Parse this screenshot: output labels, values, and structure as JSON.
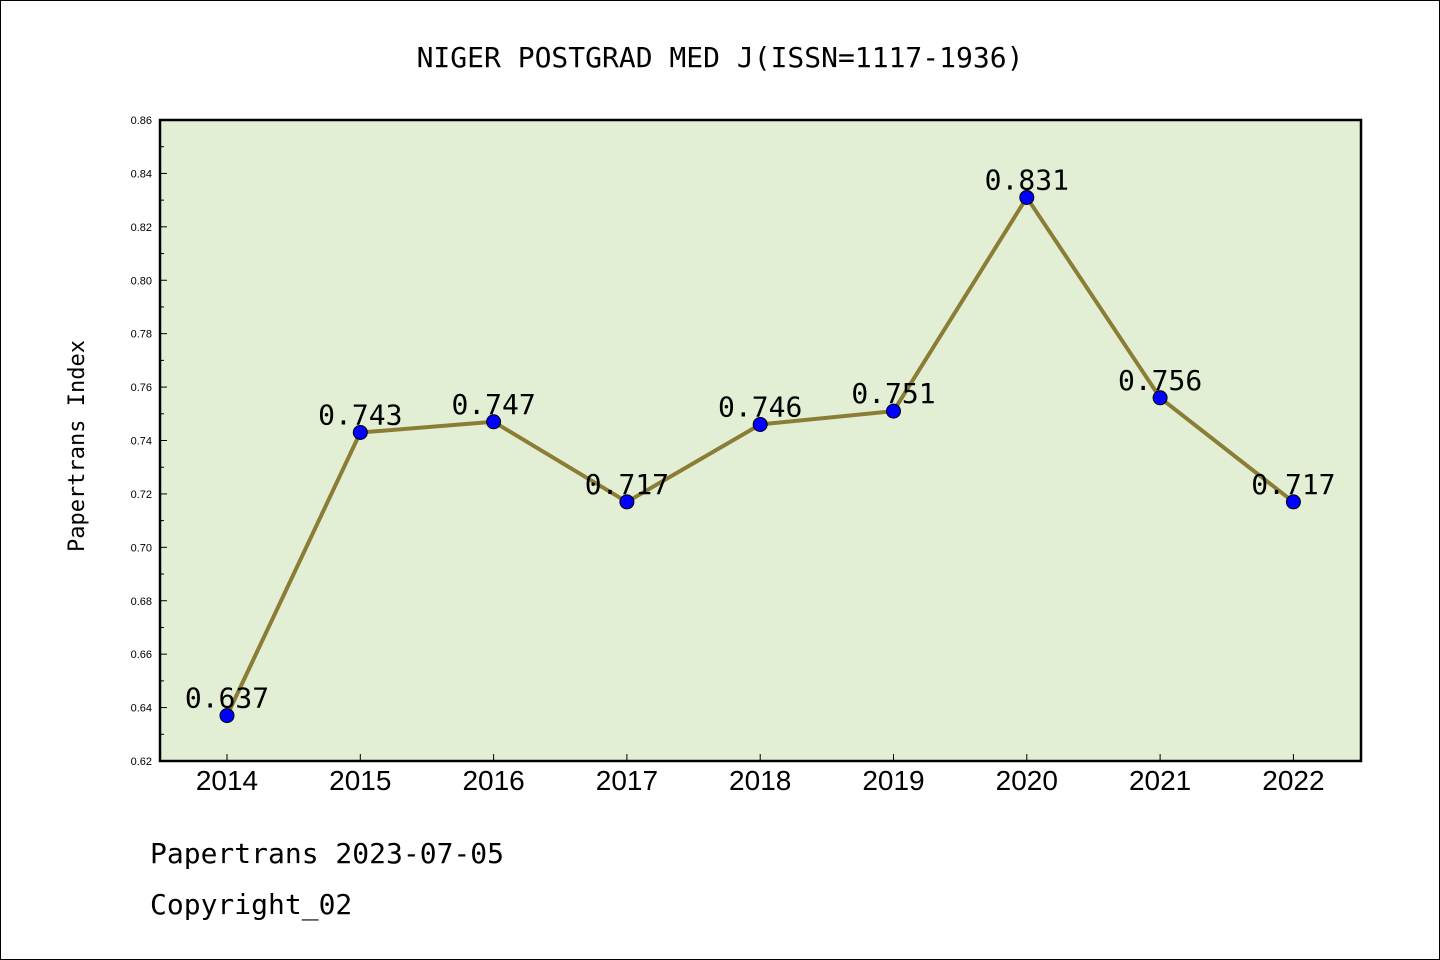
{
  "chart_data": {
    "type": "line",
    "title": "NIGER POSTGRAD MED J(ISSN=1117-1936)",
    "xlabel": "",
    "ylabel": "Papertrans Index",
    "categories": [
      "2014",
      "2015",
      "2016",
      "2017",
      "2018",
      "2019",
      "2020",
      "2021",
      "2022"
    ],
    "values": [
      0.637,
      0.743,
      0.747,
      0.717,
      0.746,
      0.751,
      0.831,
      0.756,
      0.717
    ],
    "data_labels": [
      "0.637",
      "0.743",
      "0.747",
      "0.717",
      "0.746",
      "0.751",
      "0.831",
      "0.756",
      "0.717"
    ],
    "ylim": [
      0.62,
      0.86
    ],
    "yticks": [
      "0.62",
      "0.64",
      "0.66",
      "0.68",
      "0.70",
      "0.72",
      "0.74",
      "0.76",
      "0.78",
      "0.80",
      "0.82",
      "0.84",
      "0.86"
    ],
    "grid": false,
    "colors": {
      "plot_background": "#e2efd5",
      "line": "#8b7d35",
      "marker": "#0000ff"
    }
  },
  "footer": {
    "line1": "Papertrans 2023-07-05",
    "line2": "Copyright_02"
  }
}
